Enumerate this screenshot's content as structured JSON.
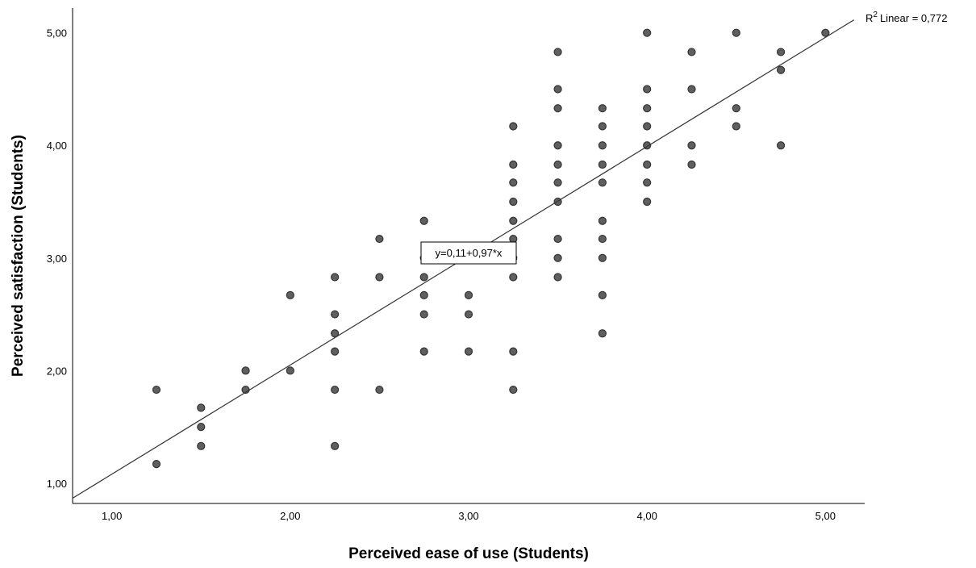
{
  "chart_data": {
    "type": "scatter",
    "title": "",
    "xlabel": "Perceived ease of use (Students)",
    "ylabel": "Perceived satisfaction (Students)",
    "xlim": [
      0.78,
      5.22
    ],
    "ylim": [
      0.82,
      5.22
    ],
    "xticks": [
      1.0,
      2.0,
      3.0,
      4.0,
      5.0
    ],
    "yticks": [
      1.0,
      2.0,
      3.0,
      4.0,
      5.0
    ],
    "xtick_labels": [
      "1,00",
      "2,00",
      "3,00",
      "4,00",
      "5,00"
    ],
    "ytick_labels": [
      "1,00",
      "2,00",
      "3,00",
      "4,00",
      "5,00"
    ],
    "grid": false,
    "point_color": "#5f5f5f",
    "point_edge_color": "#333333",
    "points": [
      {
        "x": 1.25,
        "y": 1.83
      },
      {
        "x": 1.25,
        "y": 1.17
      },
      {
        "x": 1.5,
        "y": 1.67
      },
      {
        "x": 1.5,
        "y": 1.5
      },
      {
        "x": 1.5,
        "y": 1.33
      },
      {
        "x": 1.75,
        "y": 2.0
      },
      {
        "x": 1.75,
        "y": 1.83
      },
      {
        "x": 2.0,
        "y": 2.67
      },
      {
        "x": 2.0,
        "y": 2.0
      },
      {
        "x": 2.25,
        "y": 2.83
      },
      {
        "x": 2.25,
        "y": 2.5
      },
      {
        "x": 2.25,
        "y": 2.33
      },
      {
        "x": 2.25,
        "y": 2.17
      },
      {
        "x": 2.25,
        "y": 1.83
      },
      {
        "x": 2.25,
        "y": 1.33
      },
      {
        "x": 2.5,
        "y": 3.17
      },
      {
        "x": 2.5,
        "y": 2.83
      },
      {
        "x": 2.5,
        "y": 1.83
      },
      {
        "x": 2.75,
        "y": 3.33
      },
      {
        "x": 2.75,
        "y": 3.0
      },
      {
        "x": 2.75,
        "y": 2.83
      },
      {
        "x": 2.75,
        "y": 2.67
      },
      {
        "x": 2.75,
        "y": 2.5
      },
      {
        "x": 2.75,
        "y": 2.17
      },
      {
        "x": 3.0,
        "y": 2.67
      },
      {
        "x": 3.0,
        "y": 2.5
      },
      {
        "x": 3.0,
        "y": 2.17
      },
      {
        "x": 3.25,
        "y": 4.17
      },
      {
        "x": 3.25,
        "y": 3.83
      },
      {
        "x": 3.25,
        "y": 3.67
      },
      {
        "x": 3.25,
        "y": 3.5
      },
      {
        "x": 3.25,
        "y": 3.33
      },
      {
        "x": 3.25,
        "y": 3.17
      },
      {
        "x": 3.25,
        "y": 3.0
      },
      {
        "x": 3.25,
        "y": 2.83
      },
      {
        "x": 3.25,
        "y": 2.17
      },
      {
        "x": 3.25,
        "y": 1.83
      },
      {
        "x": 3.5,
        "y": 4.83
      },
      {
        "x": 3.5,
        "y": 4.5
      },
      {
        "x": 3.5,
        "y": 4.33
      },
      {
        "x": 3.5,
        "y": 4.0
      },
      {
        "x": 3.5,
        "y": 3.83
      },
      {
        "x": 3.5,
        "y": 3.67
      },
      {
        "x": 3.5,
        "y": 3.5
      },
      {
        "x": 3.5,
        "y": 3.17
      },
      {
        "x": 3.5,
        "y": 3.0
      },
      {
        "x": 3.5,
        "y": 2.83
      },
      {
        "x": 3.75,
        "y": 4.33
      },
      {
        "x": 3.75,
        "y": 4.17
      },
      {
        "x": 3.75,
        "y": 4.0
      },
      {
        "x": 3.75,
        "y": 3.83
      },
      {
        "x": 3.75,
        "y": 3.67
      },
      {
        "x": 3.75,
        "y": 3.33
      },
      {
        "x": 3.75,
        "y": 3.17
      },
      {
        "x": 3.75,
        "y": 3.0
      },
      {
        "x": 3.75,
        "y": 2.67
      },
      {
        "x": 3.75,
        "y": 2.33
      },
      {
        "x": 4.0,
        "y": 5.0
      },
      {
        "x": 4.0,
        "y": 4.5
      },
      {
        "x": 4.0,
        "y": 4.33
      },
      {
        "x": 4.0,
        "y": 4.17
      },
      {
        "x": 4.0,
        "y": 4.0
      },
      {
        "x": 4.0,
        "y": 3.83
      },
      {
        "x": 4.0,
        "y": 3.67
      },
      {
        "x": 4.0,
        "y": 3.5
      },
      {
        "x": 4.25,
        "y": 4.83
      },
      {
        "x": 4.25,
        "y": 4.5
      },
      {
        "x": 4.25,
        "y": 4.0
      },
      {
        "x": 4.25,
        "y": 3.83
      },
      {
        "x": 4.5,
        "y": 5.0
      },
      {
        "x": 4.5,
        "y": 4.33
      },
      {
        "x": 4.5,
        "y": 4.17
      },
      {
        "x": 4.75,
        "y": 4.83
      },
      {
        "x": 4.75,
        "y": 4.67
      },
      {
        "x": 4.75,
        "y": 4.0
      },
      {
        "x": 5.0,
        "y": 5.0
      }
    ],
    "fit_line": {
      "intercept": 0.11,
      "slope": 0.97,
      "equation_label": "y=0,11+0,97*x",
      "r2_label_main": "Linear = 0,772",
      "r2_label_prefix": "R",
      "r2_label_sup": "2"
    }
  }
}
